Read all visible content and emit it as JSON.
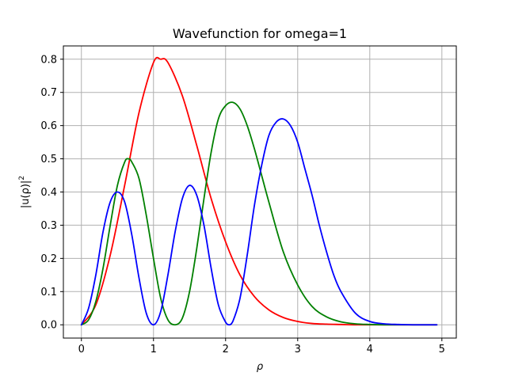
{
  "chart_data": {
    "type": "line",
    "title": "Wavefunction for omega=1",
    "xlabel": "ρ",
    "ylabel": "|u(ρ)|",
    "ylabel_superscript": "2",
    "xlim": [
      -0.25,
      5.2
    ],
    "ylim": [
      -0.04,
      0.84
    ],
    "xticks": [
      0,
      1,
      2,
      3,
      4,
      5
    ],
    "yticks": [
      0.0,
      0.1,
      0.2,
      0.3,
      0.4,
      0.5,
      0.6,
      0.7,
      0.8
    ],
    "xtick_labels": [
      "0",
      "1",
      "2",
      "3",
      "4",
      "5"
    ],
    "ytick_labels": [
      "0.0",
      "0.1",
      "0.2",
      "0.3",
      "0.4",
      "0.5",
      "0.6",
      "0.7",
      "0.8"
    ],
    "grid": true,
    "legend": "none",
    "series": [
      {
        "color": "#ff0000",
        "x": [
          0,
          0.2,
          0.4,
          0.6,
          0.8,
          1.0,
          1.1,
          1.2,
          1.4,
          1.6,
          1.8,
          2.0,
          2.2,
          2.4,
          2.6,
          2.8,
          3.0,
          3.2,
          3.4,
          3.6,
          3.8,
          4.0,
          4.5,
          4.93
        ],
        "y": [
          0,
          0.06,
          0.21,
          0.42,
          0.64,
          0.79,
          0.8,
          0.79,
          0.69,
          0.54,
          0.38,
          0.25,
          0.15,
          0.085,
          0.045,
          0.022,
          0.01,
          0.004,
          0.002,
          0.001,
          0,
          0,
          0,
          0
        ]
      },
      {
        "color": "#008000",
        "x": [
          0,
          0.1,
          0.2,
          0.3,
          0.4,
          0.5,
          0.6,
          0.65,
          0.7,
          0.8,
          0.9,
          1.0,
          1.1,
          1.2,
          1.3,
          1.4,
          1.5,
          1.6,
          1.7,
          1.8,
          1.9,
          2.0,
          2.1,
          2.2,
          2.3,
          2.4,
          2.5,
          2.6,
          2.8,
          3.0,
          3.2,
          3.4,
          3.6,
          3.8,
          4.0,
          4.2,
          4.5,
          4.93
        ],
        "y": [
          0,
          0.015,
          0.07,
          0.17,
          0.3,
          0.42,
          0.49,
          0.5,
          0.49,
          0.44,
          0.33,
          0.2,
          0.08,
          0.015,
          0,
          0.02,
          0.1,
          0.23,
          0.38,
          0.52,
          0.62,
          0.66,
          0.67,
          0.65,
          0.6,
          0.53,
          0.45,
          0.37,
          0.22,
          0.12,
          0.055,
          0.024,
          0.009,
          0.003,
          0.001,
          0,
          0,
          0
        ]
      },
      {
        "color": "#0000ff",
        "x": [
          0,
          0.1,
          0.2,
          0.3,
          0.4,
          0.5,
          0.6,
          0.7,
          0.8,
          0.9,
          1.0,
          1.1,
          1.2,
          1.3,
          1.4,
          1.5,
          1.6,
          1.7,
          1.8,
          1.9,
          2.0,
          2.05,
          2.1,
          2.2,
          2.3,
          2.4,
          2.5,
          2.6,
          2.7,
          2.8,
          2.9,
          3.0,
          3.1,
          3.2,
          3.3,
          3.4,
          3.5,
          3.6,
          3.8,
          4.0,
          4.2,
          4.4,
          4.6,
          4.93
        ],
        "y": [
          0,
          0.05,
          0.15,
          0.28,
          0.37,
          0.4,
          0.37,
          0.27,
          0.14,
          0.035,
          0,
          0.04,
          0.15,
          0.28,
          0.38,
          0.42,
          0.39,
          0.3,
          0.17,
          0.06,
          0.008,
          0,
          0.01,
          0.08,
          0.21,
          0.36,
          0.48,
          0.57,
          0.61,
          0.62,
          0.6,
          0.55,
          0.47,
          0.39,
          0.3,
          0.22,
          0.15,
          0.1,
          0.035,
          0.01,
          0.003,
          0.001,
          0,
          0
        ]
      }
    ]
  }
}
